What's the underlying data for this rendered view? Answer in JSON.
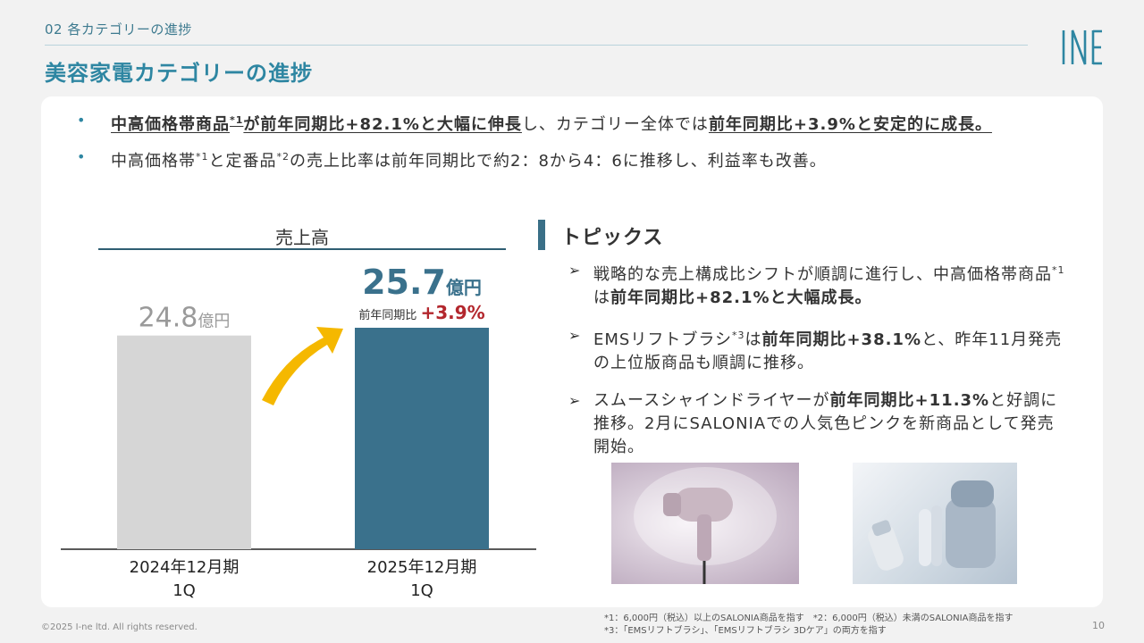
{
  "header": {
    "section_label": "02 各カテゴリーの進捗",
    "title": "美容家電カテゴリーの進捗",
    "logo_text": "I-ne"
  },
  "bullets": [
    {
      "segments": [
        {
          "t": "中高価格帯商品",
          "bold": true,
          "underline": true
        },
        {
          "t": "*1",
          "sup": true,
          "bold": true,
          "underline": true
        },
        {
          "t": "が前年同期比+82.1%と大幅に伸長",
          "bold": true,
          "underline": true
        },
        {
          "t": "し、カテゴリー全体では"
        },
        {
          "t": "前年同期比+3.9%と安定的に成長。",
          "bold": true,
          "underline": true
        }
      ]
    },
    {
      "segments": [
        {
          "t": "中高価格帯"
        },
        {
          "t": "*1",
          "sup": true
        },
        {
          "t": "と定番品"
        },
        {
          "t": "*2",
          "sup": true
        },
        {
          "t": "の売上比率は前年同期比で約2：8から4：6に推移し、利益率も改善。"
        }
      ]
    }
  ],
  "chart_data": {
    "type": "bar",
    "title": "売上高",
    "categories": [
      "2024年12月期\n1Q",
      "2025年12月期\n1Q"
    ],
    "values": [
      24.8,
      25.7
    ],
    "unit": "億円",
    "value_labels": [
      "24.8",
      "25.7"
    ],
    "growth_label": "前年同期比",
    "growth_value": "+3.9%",
    "bar_colors": [
      "#d6d6d6",
      "#3a718c"
    ],
    "highlight_color": "#3a718c",
    "growth_color": "#b3272d",
    "arrow_color": "#f5b800"
  },
  "topics": {
    "title": "トピックス",
    "items": [
      {
        "segments": [
          {
            "t": "戦略的な売上構成比シフトが順調に進行し、中高価格帯商品"
          },
          {
            "t": "*1",
            "sup": true
          },
          {
            "t": "は"
          },
          {
            "t": "前年同期比+82.1%と大幅成長。",
            "bold": true
          }
        ]
      },
      {
        "segments": [
          {
            "t": "EMSリフトブラシ"
          },
          {
            "t": "*3",
            "sup": true
          },
          {
            "t": "は"
          },
          {
            "t": "前年同期比+38.1%",
            "bold": true
          },
          {
            "t": "と、昨年11月発売の上位版商品も順調に推移。"
          }
        ]
      },
      {
        "segments": [
          {
            "t": "スムースシャインドライヤーが"
          },
          {
            "t": "前年同期比+11.3%",
            "bold": true
          },
          {
            "t": "と好調に推移。2月にSALONIAでの人気色ピンクを新商品として発売開始。"
          }
        ]
      }
    ]
  },
  "footnotes": {
    "line1": "*1：6,000円（税込）以上のSALONIA商品を指す　*2：6,000円（税込）未満のSALONIA商品を指す",
    "line2": "*3：「EMSリフトブラシ」、「EMSリフトブラシ 3Dケア」の両方を指す"
  },
  "footer": {
    "copyright": "©2025 I-ne ltd. All rights reserved.",
    "page_number": "10"
  }
}
